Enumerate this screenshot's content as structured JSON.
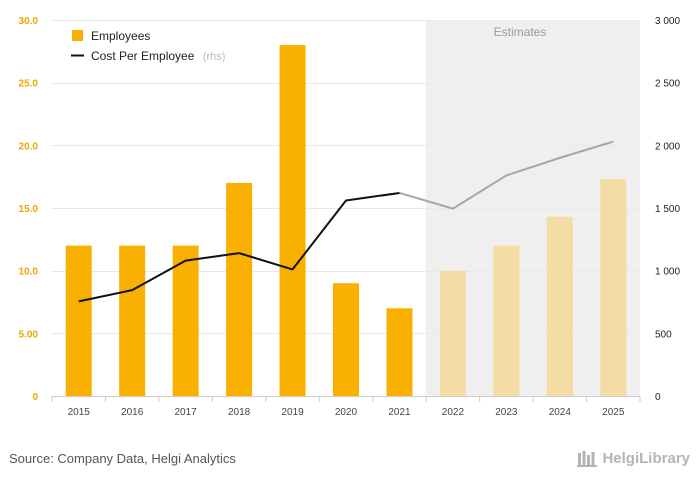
{
  "chart_data": {
    "type": "bar",
    "categories": [
      "2015",
      "2016",
      "2017",
      "2018",
      "2019",
      "2020",
      "2021",
      "2022",
      "2023",
      "2024",
      "2025"
    ],
    "estimate_from_index": 7,
    "estimates_label": "Estimates",
    "series": [
      {
        "name": "Employees",
        "axis": "left",
        "type": "bar",
        "values": [
          12,
          12,
          12,
          17,
          28,
          9,
          7,
          10,
          12,
          14.3,
          17.3
        ]
      },
      {
        "name": "Cost Per Employee",
        "suffix": "(rhs)",
        "axis": "right",
        "type": "line",
        "values": [
          755,
          845,
          1080,
          1140,
          1010,
          1560,
          1620,
          1495,
          1760,
          1900,
          2030
        ]
      }
    ],
    "left_axis": {
      "min": 0,
      "max": 30,
      "ticks": [
        "0",
        "5.00",
        "10.0",
        "15.0",
        "20.0",
        "25.0",
        "30.0"
      ]
    },
    "right_axis": {
      "min": 0,
      "max": 3000,
      "ticks": [
        "0",
        "500",
        "1 000",
        "1 500",
        "2 000",
        "2 500",
        "3 000"
      ]
    },
    "colors": {
      "bar": "#f9b000",
      "bar_estimate": "#f4dca5",
      "line": "#111111",
      "line_estimate": "#a6a6a6",
      "estimate_band": "#efefef",
      "grid": "#e9e9e9"
    },
    "legend_position": "top-left"
  },
  "footer": {
    "source": "Source: Company Data, Helgi Analytics",
    "brand": "HelgiLibrary"
  }
}
